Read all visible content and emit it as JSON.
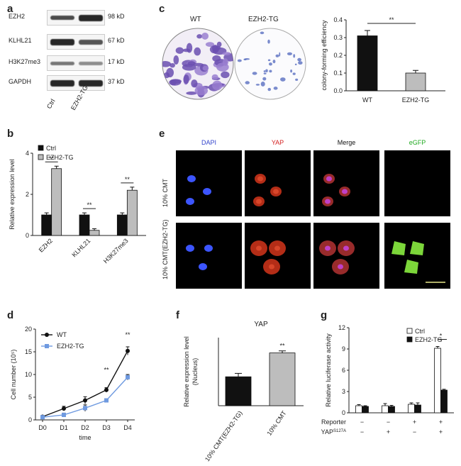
{
  "figure": {
    "panels": {
      "a": {
        "letter": "a",
        "rows": [
          {
            "label": "EZH2",
            "size": "98 kD"
          },
          {
            "label": "KLHL21",
            "size": "67 kD"
          },
          {
            "label": "H3K27me3",
            "size": "17 kD"
          },
          {
            "label": "GAPDH",
            "size": "37 kD"
          }
        ],
        "lanes": [
          "Ctrl",
          "EZH2-TG"
        ]
      },
      "b": {
        "letter": "b",
        "chart_data": {
          "type": "bar",
          "categories": [
            "EZH2",
            "KLHL21",
            "H3K27me3"
          ],
          "series": [
            {
              "name": "Ctrl",
              "values": [
                1.0,
                1.0,
                1.0
              ],
              "errors": [
                0.1,
                0.1,
                0.1
              ],
              "color": "#111111"
            },
            {
              "name": "EZH2-TG",
              "values": [
                3.25,
                0.25,
                2.2
              ],
              "errors": [
                0.12,
                0.08,
                0.15
              ],
              "color": "#bdbdbd"
            }
          ],
          "ylabel": "Relative expression level",
          "ylim": [
            0,
            4
          ],
          "yticks": [
            "0",
            "2",
            "4"
          ],
          "significance": [
            "**",
            "**",
            "**"
          ],
          "legend_position": "top-left"
        }
      },
      "c": {
        "letter": "c",
        "plates": [
          "WT",
          "EZH2-TG"
        ],
        "chart_data": {
          "type": "bar",
          "categories": [
            "WT",
            "EZH2-TG"
          ],
          "values": [
            0.31,
            0.1
          ],
          "errors": [
            0.03,
            0.015
          ],
          "colors": [
            "#111111",
            "#bdbdbd"
          ],
          "ylabel": "colony-forming efficiency",
          "ylim": [
            0,
            0.4
          ],
          "yticks": [
            "0.0",
            "0.1",
            "0.2",
            "0.3",
            "0.4"
          ],
          "significance": "**"
        }
      },
      "d": {
        "letter": "d",
        "chart_data": {
          "type": "line",
          "x": [
            "D0",
            "D1",
            "D2",
            "D3",
            "D4"
          ],
          "series": [
            {
              "name": "WT",
              "values": [
                0.7,
                2.5,
                4.3,
                6.6,
                15.2
              ],
              "errors": [
                0.2,
                0.5,
                0.8,
                0.5,
                0.9
              ],
              "color": "#111111",
              "marker": "circle"
            },
            {
              "name": "EZH2-TG",
              "values": [
                0.6,
                1.1,
                2.6,
                4.3,
                9.4
              ],
              "errors": [
                0.1,
                0.4,
                0.7,
                0.3,
                0.6
              ],
              "color": "#6f9ae0",
              "marker": "square"
            }
          ],
          "xlabel": "time",
          "ylabel": "Cell number (10⁵)",
          "ylim": [
            0,
            20
          ],
          "yticks": [
            "0",
            "5",
            "10",
            "15",
            "20"
          ],
          "significance": [
            {
              "x": "D3",
              "text": "**"
            },
            {
              "x": "D4",
              "text": "**"
            }
          ],
          "legend_position": "top-left"
        }
      },
      "e": {
        "letter": "e",
        "columns": [
          "DAPI",
          "YAP",
          "Merge",
          "eGFP"
        ],
        "column_colors": [
          "#3344cc",
          "#d42020",
          "#111111",
          "#22aa22"
        ],
        "rows": [
          "10% CMT",
          "10% CMT(EZH2-TG)"
        ]
      },
      "f": {
        "letter": "f",
        "chart_data": {
          "type": "bar",
          "title": "YAP",
          "categories": [
            "10% CMT(EZH2-TG)",
            "10% CMT"
          ],
          "values": [
            1.7,
            3.1
          ],
          "errors": [
            0.2,
            0.12
          ],
          "colors": [
            "#111111",
            "#bdbdbd"
          ],
          "ylabel": "Relative expression level",
          "ylabel2": "(Nucleus)",
          "ylim": [
            0,
            4
          ],
          "significance": "**"
        }
      },
      "g": {
        "letter": "g",
        "chart_data": {
          "type": "bar",
          "categories": [
            "1",
            "2",
            "3",
            "4"
          ],
          "series": [
            {
              "name": "Ctrl",
              "values": [
                1.0,
                1.0,
                1.2,
                9.1
              ],
              "errors": [
                0.15,
                0.3,
                0.2,
                0.25
              ],
              "color": "#ffffff"
            },
            {
              "name": "EZH2-TG",
              "values": [
                0.9,
                0.9,
                1.1,
                3.2
              ],
              "errors": [
                0.1,
                0.15,
                0.3,
                0.12
              ],
              "color": "#111111"
            }
          ],
          "ylabel": "Relative luciferase activity",
          "ylim": [
            0,
            12
          ],
          "yticks": [
            "0",
            "3",
            "6",
            "9",
            "12"
          ],
          "significance": "*",
          "legend_position": "top-right",
          "rows": [
            {
              "label": "Reporter",
              "marks": [
                "−",
                "−",
                "+",
                "+"
              ]
            },
            {
              "label": "YAP",
              "label_sup": "S127A",
              "marks": [
                "−",
                "+",
                "−",
                "+"
              ]
            }
          ]
        }
      }
    }
  }
}
